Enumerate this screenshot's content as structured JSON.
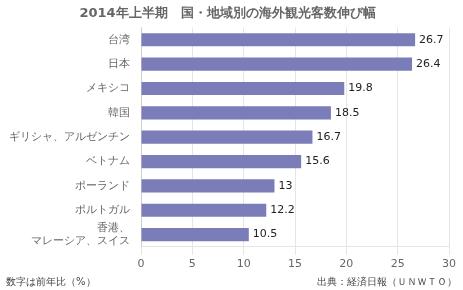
{
  "chart_data": {
    "type": "bar",
    "orientation": "horizontal",
    "title": "2014年上半期　国・地域別の海外観光客数伸び幅",
    "categories": [
      "香港、\nマレーシア、スイス",
      "ポルトガル",
      "ポーランド",
      "ベトナム",
      "ギリシャ、アルゼンチン",
      "韓国",
      "メキシコ",
      "日本",
      "台湾"
    ],
    "values": [
      10.5,
      12.2,
      13.0,
      15.6,
      16.7,
      18.5,
      19.8,
      26.4,
      26.7
    ],
    "color": "#7b7db8",
    "xlim": [
      0,
      30
    ],
    "xticks": [
      0,
      5,
      10,
      15,
      20,
      25,
      30
    ],
    "grid": true,
    "data_labels": true,
    "annotations": [
      "数字は前年比（%）",
      "出典：経済日報（ＵＮＷＴＯ）"
    ]
  }
}
